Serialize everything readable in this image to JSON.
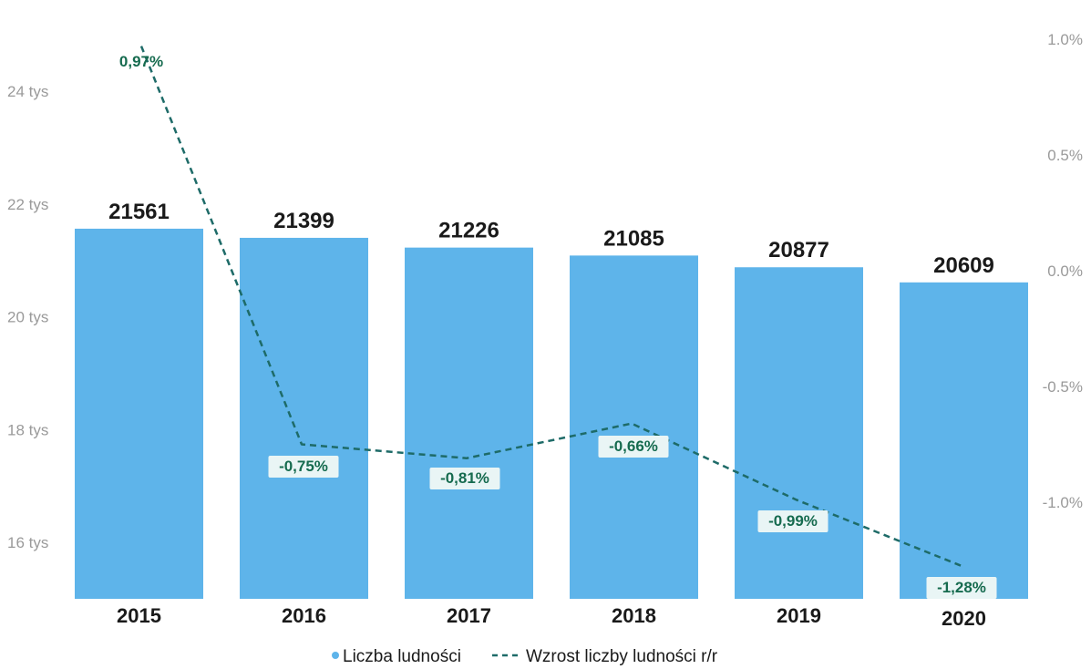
{
  "colors": {
    "bar": "#5eb4ea",
    "line": "#1e6b68",
    "pct_text": "#166b4f",
    "pct_box": "#e9f5f5"
  },
  "chart_data": {
    "type": "bar",
    "title": "",
    "categories": [
      "2015",
      "2016",
      "2017",
      "2018",
      "2019",
      "2020"
    ],
    "series": [
      {
        "name": "Liczba ludności",
        "type": "bar",
        "axis": "left",
        "values": [
          21561,
          21399,
          21226,
          21085,
          20877,
          20609
        ],
        "labels": [
          "21561",
          "21399",
          "21226",
          "21085",
          "20877",
          "20609"
        ]
      },
      {
        "name": "Wzrost liczby ludności r/r",
        "type": "line",
        "style": "dashed",
        "axis": "right",
        "values": [
          0.97,
          -0.75,
          -0.81,
          -0.66,
          -0.99,
          -1.28
        ],
        "labels": [
          "0,97%",
          "-0,75%",
          "-0,81%",
          "-0,66%",
          "-0,99%",
          "-1,28%"
        ]
      }
    ],
    "y_left": {
      "ticks": [
        16000,
        18000,
        20000,
        22000,
        24000
      ],
      "tick_labels": [
        "16 tys",
        "18 tys",
        "20 tys",
        "22 tys",
        "24 tys"
      ],
      "range": [
        15000,
        25000
      ]
    },
    "y_right": {
      "ticks": [
        -1.0,
        -0.5,
        0.0,
        0.5,
        1.0
      ],
      "tick_labels": [
        "-1.0%",
        "-0.5%",
        "0.0%",
        "0.5%",
        "1.0%"
      ],
      "range": [
        -1.38,
        1.12
      ]
    },
    "grid": false,
    "legend": {
      "position": "bottom",
      "entries": [
        "Liczba ludności",
        "Wzrost liczby ludności r/r"
      ]
    }
  }
}
